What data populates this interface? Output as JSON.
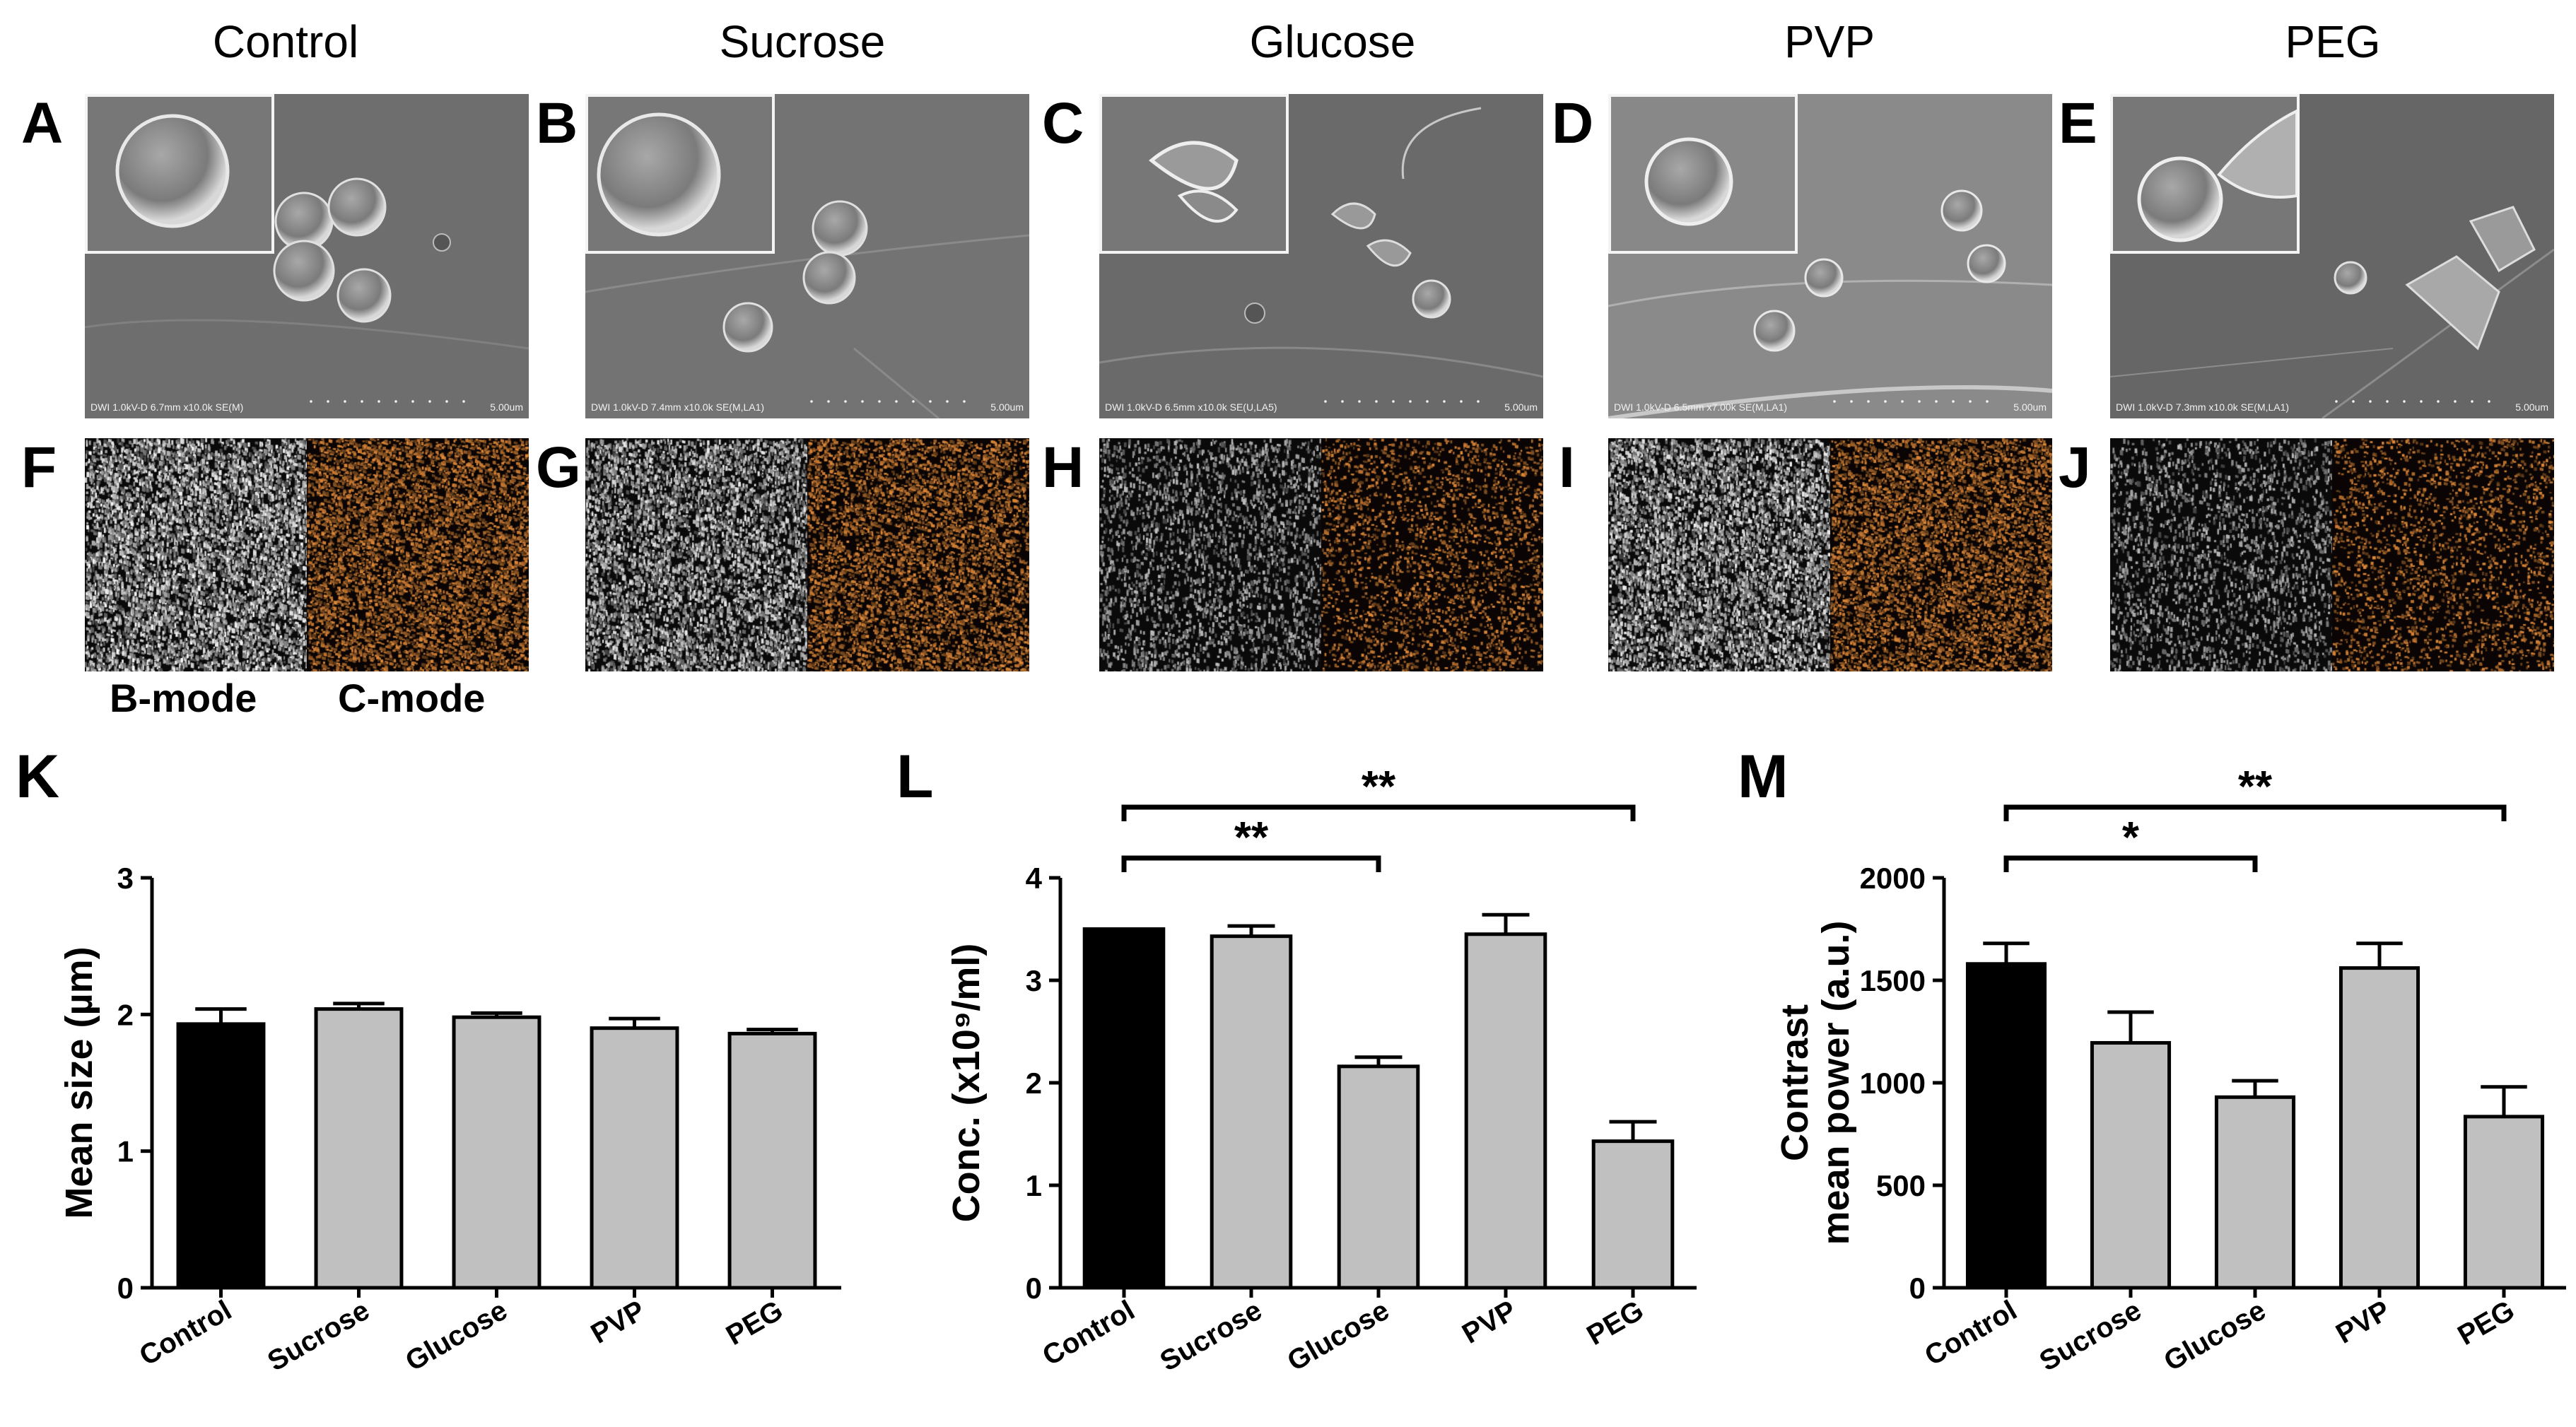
{
  "columns": [
    "Control",
    "Sucrose",
    "Glucose",
    "PVP",
    "PEG"
  ],
  "sem_panels": [
    {
      "letter": "A",
      "meta": "DWI 1.0kV-D 6.7mm x10.0k SE(M)",
      "scale": "5.00um"
    },
    {
      "letter": "B",
      "meta": "DWI 1.0kV-D 7.4mm x10.0k SE(M,LA1)",
      "scale": "5.00um"
    },
    {
      "letter": "C",
      "meta": "DWI 1.0kV-D 6.5mm x10.0k SE(U,LA5)",
      "scale": "5.00um"
    },
    {
      "letter": "D",
      "meta": "DWI 1.0kV-D 6.5mm x7.00k SE(M,LA1)",
      "scale": "5.00um"
    },
    {
      "letter": "E",
      "meta": "DWI 1.0kV-D 7.3mm x10.0k SE(M,LA1)",
      "scale": "5.00um"
    }
  ],
  "us_panels": [
    {
      "letter": "F",
      "intensity": 0.95
    },
    {
      "letter": "G",
      "intensity": 0.8
    },
    {
      "letter": "H",
      "intensity": 0.35
    },
    {
      "letter": "I",
      "intensity": 0.85
    },
    {
      "letter": "J",
      "intensity": 0.3
    }
  ],
  "mode_labels": {
    "b": "B-mode",
    "c": "C-mode"
  },
  "colors": {
    "control_bar": "#000000",
    "treatment_bar": "#c0c0c0",
    "c_mode": "#e0893a"
  },
  "chart_data": [
    {
      "letter": "K",
      "type": "bar",
      "categories": [
        "Control",
        "Sucrose",
        "Glucose",
        "PVP",
        "PEG"
      ],
      "values": [
        1.93,
        2.04,
        1.98,
        1.9,
        1.86
      ],
      "errors": [
        0.11,
        0.04,
        0.03,
        0.07,
        0.03
      ],
      "ylabel": "Mean size (µm)",
      "ylabel_lines": [
        "Mean size (µm)"
      ],
      "ylim": [
        0,
        3
      ],
      "yticks": [
        "0",
        "1",
        "2",
        "3"
      ],
      "ytick_values": [
        0,
        1,
        2,
        3
      ],
      "significance": []
    },
    {
      "letter": "L",
      "type": "bar",
      "categories": [
        "Control",
        "Sucrose",
        "Glucose",
        "PVP",
        "PEG"
      ],
      "values": [
        3.5,
        3.43,
        2.16,
        3.45,
        1.43
      ],
      "errors": [
        0.0,
        0.1,
        0.09,
        0.19,
        0.19
      ],
      "ylabel": "Conc. (x10⁹/ml)",
      "ylabel_lines": [
        "Conc. (x10⁹/ml)"
      ],
      "ylim": [
        0,
        4
      ],
      "yticks": [
        "0",
        "1",
        "2",
        "3",
        "4"
      ],
      "ytick_values": [
        0,
        1,
        2,
        3,
        4
      ],
      "significance": [
        {
          "from": 0,
          "to": 2,
          "label": "**"
        },
        {
          "from": 0,
          "to": 4,
          "label": "**"
        }
      ]
    },
    {
      "letter": "M",
      "type": "bar",
      "categories": [
        "Control",
        "Sucrose",
        "Glucose",
        "PVP",
        "PEG"
      ],
      "values": [
        1580,
        1195,
        930,
        1560,
        835
      ],
      "errors": [
        100,
        150,
        80,
        120,
        145
      ],
      "ylabel": "Contrast mean power (a.u.)",
      "ylabel_lines": [
        "Contrast",
        "mean power (a.u.)"
      ],
      "ylim": [
        0,
        2000
      ],
      "yticks": [
        "0",
        "500",
        "1000",
        "1500",
        "2000"
      ],
      "ytick_values": [
        0,
        500,
        1000,
        1500,
        2000
      ],
      "significance": [
        {
          "from": 0,
          "to": 2,
          "label": "*"
        },
        {
          "from": 0,
          "to": 4,
          "label": "**"
        }
      ]
    }
  ]
}
